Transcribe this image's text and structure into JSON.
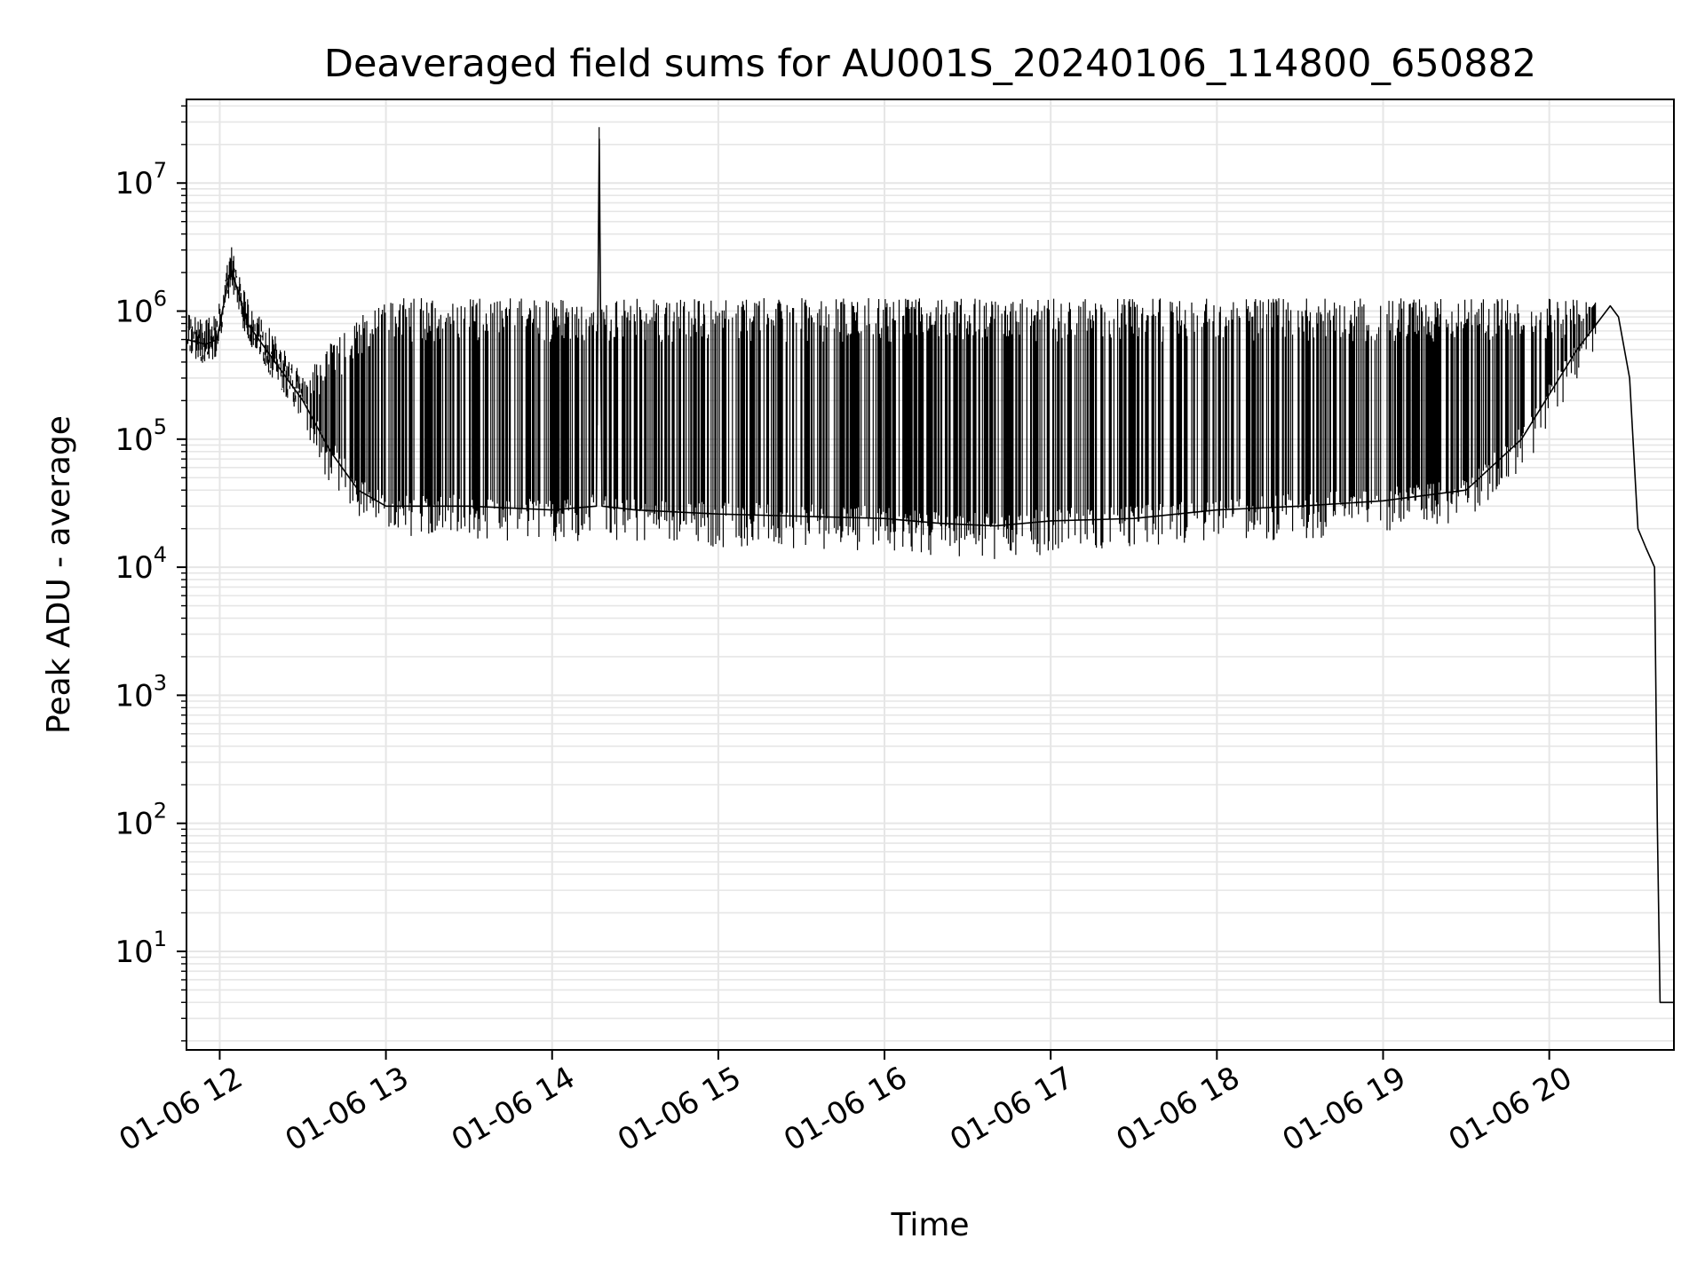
{
  "chart_data": {
    "type": "line",
    "title": "Deaveraged field sums for AU001S_20240106_114800_650882",
    "xlabel": "Time",
    "ylabel": "Peak ADU - average",
    "x_scale": "time",
    "y_scale": "log",
    "xlim": [
      "2024-01-06 11:48",
      "2024-01-06 20:45"
    ],
    "ylim": [
      1.7,
      45000000
    ],
    "grid": true,
    "legend": "none",
    "line_color": "#000000",
    "grid_color": "#e6e6e6",
    "x_tick_labels": [
      "01-06 12",
      "01-06 13",
      "01-06 14",
      "01-06 15",
      "01-06 16",
      "01-06 17",
      "01-06 18",
      "01-06 19",
      "01-06 20"
    ],
    "x_tick_values": [
      "2024-01-06 12:00",
      "2024-01-06 13:00",
      "2024-01-06 14:00",
      "2024-01-06 15:00",
      "2024-01-06 16:00",
      "2024-01-06 17:00",
      "2024-01-06 18:00",
      "2024-01-06 19:00",
      "2024-01-06 20:00"
    ],
    "y_tick_values": [
      10,
      100,
      1000,
      10000,
      100000,
      1000000,
      10000000
    ],
    "y_tick_labels": [
      {
        "base": "10",
        "exp": "1"
      },
      {
        "base": "10",
        "exp": "2"
      },
      {
        "base": "10",
        "exp": "3"
      },
      {
        "base": "10",
        "exp": "4"
      },
      {
        "base": "10",
        "exp": "5"
      },
      {
        "base": "10",
        "exp": "6"
      },
      {
        "base": "10",
        "exp": "7"
      }
    ],
    "series": [
      {
        "x": [
          "2024-01-06 11:48",
          "2024-01-06 11:55",
          "2024-01-06 11:59",
          "2024-01-06 12:02",
          "2024-01-06 12:04",
          "2024-01-06 12:10",
          "2024-01-06 12:20",
          "2024-01-06 12:30",
          "2024-01-06 12:40",
          "2024-01-06 12:50",
          "2024-01-06 13:00",
          "2024-01-06 13:30",
          "2024-01-06 14:00",
          "2024-01-06 14:16",
          "2024-01-06 14:17",
          "2024-01-06 14:18",
          "2024-01-06 14:30",
          "2024-01-06 15:00",
          "2024-01-06 15:30",
          "2024-01-06 16:00",
          "2024-01-06 16:20",
          "2024-01-06 16:40",
          "2024-01-06 17:00",
          "2024-01-06 17:30",
          "2024-01-06 18:00",
          "2024-01-06 18:30",
          "2024-01-06 19:00",
          "2024-01-06 19:30",
          "2024-01-06 19:50",
          "2024-01-06 20:10",
          "2024-01-06 20:22",
          "2024-01-06 20:25",
          "2024-01-06 20:29",
          "2024-01-06 20:32",
          "2024-01-06 20:35",
          "2024-01-06 20:38",
          "2024-01-06 20:39",
          "2024-01-06 20:40",
          "2024-01-06 20:45"
        ],
        "y": [
          600000,
          550000,
          600000,
          1300000,
          2200000,
          800000,
          400000,
          200000,
          80000,
          40000,
          30000,
          30000,
          28000,
          30000,
          22000000,
          30000,
          28000,
          26000,
          25000,
          24000,
          22000,
          21000,
          23000,
          24000,
          28000,
          30000,
          33000,
          40000,
          100000,
          500000,
          1100000,
          900000,
          300000,
          20000,
          14000,
          10000,
          100,
          4,
          4
        ]
      }
    ]
  }
}
